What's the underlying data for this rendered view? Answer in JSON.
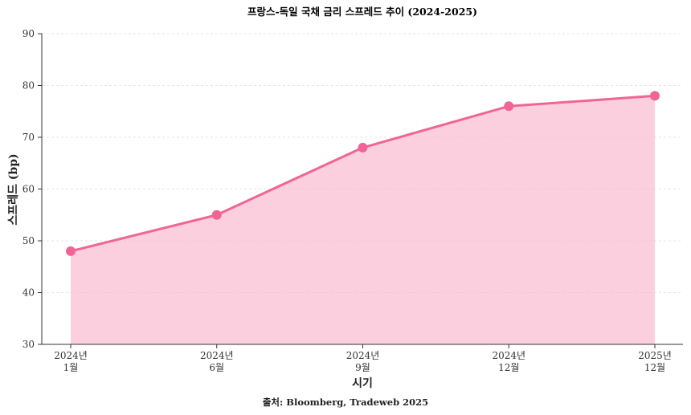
{
  "chart_data": {
    "type": "area",
    "title": "프랑스-독일 국채 금리 스프레드 추이 (2024-2025)",
    "xlabel": "시기",
    "ylabel": "스프레드 (bp)",
    "source": "출처: Bloomberg, Tradeweb 2025",
    "categories": [
      [
        "2024년",
        "1월"
      ],
      [
        "2024년",
        "6월"
      ],
      [
        "2024년",
        "9월"
      ],
      [
        "2024년",
        "12월"
      ],
      [
        "2025년",
        "12월"
      ]
    ],
    "values": [
      48,
      55,
      68,
      76,
      78
    ],
    "ylim": [
      30,
      90
    ],
    "yticks": [
      30,
      40,
      50,
      60,
      70,
      80,
      90
    ],
    "grid": true,
    "colors": {
      "line": "#f06595",
      "fill": "#fbb6cd",
      "marker": "#f06595"
    }
  }
}
